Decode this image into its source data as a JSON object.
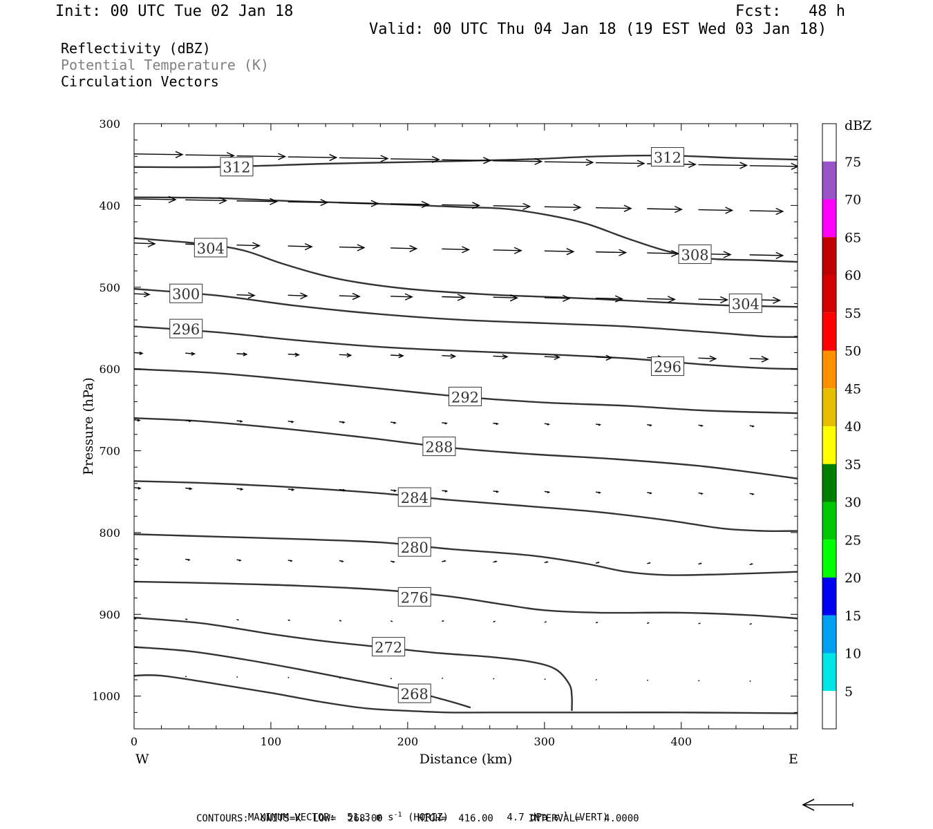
{
  "header": {
    "init": "Init: 00 UTC Tue 02 Jan 18",
    "fcst": "Fcst:   48 h",
    "valid": "Valid: 00 UTC Thu 04 Jan 18 (19 EST Wed 03 Jan 18)"
  },
  "legend": {
    "line1": "Reflectivity (dBZ)",
    "line2": "Potential Temperature (K)",
    "line3": "Circulation Vectors",
    "line2_color": "#808080"
  },
  "footer": {
    "max_vector_prefix": "MAXIMUM VECTOR:  51.3 m s",
    "max_vector_horiz": "(HORIZ)",
    "max_vector_vert_value": "4.7 dPa s",
    "max_vector_vert": "(VERT)",
    "exponent": "-1",
    "contours": "CONTOURS:  UNITS=K  LOW=  268.00      HIGH=  416.00      INTERVAL=    4.0000"
  },
  "chart_data": {
    "type": "line",
    "xlabel": "Distance (km)",
    "ylabel": "Pressure (hPa)",
    "x_ticks": [
      0,
      100,
      200,
      300,
      400
    ],
    "y_ticks": [
      300,
      400,
      500,
      600,
      700,
      800,
      900,
      1000
    ],
    "xlim": [
      0,
      485
    ],
    "ylim": [
      300,
      1040
    ],
    "x_end_labels": {
      "left": "W",
      "right": "E"
    },
    "colorbar": {
      "unit": "dBZ",
      "labels": [
        "5",
        "10",
        "15",
        "20",
        "25",
        "30",
        "35",
        "40",
        "45",
        "50",
        "55",
        "60",
        "65",
        "70",
        "75"
      ],
      "colors": [
        "#ffffff",
        "#00e5e5",
        "#00a0f0",
        "#0000f0",
        "#00ff00",
        "#00c800",
        "#008000",
        "#ffff00",
        "#e6be00",
        "#ff9000",
        "#ff0000",
        "#d40000",
        "#be0000",
        "#ff00ff",
        "#9955c8",
        "#ffffff"
      ]
    },
    "series": [
      {
        "label": "312",
        "label_at": [
          75,
          353
        ],
        "points": [
          [
            0,
            353
          ],
          [
            60,
            353
          ],
          [
            140,
            349
          ],
          [
            200,
            347
          ],
          [
            280,
            344
          ],
          [
            340,
            340
          ],
          [
            390,
            339
          ],
          [
            440,
            342
          ],
          [
            485,
            344
          ]
        ],
        "label2": "312",
        "label2_at": [
          390,
          341
        ]
      },
      {
        "label": "308",
        "label_at": [
          410,
          460
        ],
        "points": [
          [
            0,
            390
          ],
          [
            60,
            391
          ],
          [
            120,
            395
          ],
          [
            180,
            398
          ],
          [
            240,
            402
          ],
          [
            270,
            404
          ],
          [
            300,
            411
          ],
          [
            330,
            422
          ],
          [
            360,
            440
          ],
          [
            390,
            456
          ],
          [
            420,
            465
          ],
          [
            455,
            467
          ],
          [
            485,
            469
          ]
        ]
      },
      {
        "label": "304",
        "label_at": [
          56,
          452
        ],
        "points": [
          [
            0,
            440
          ],
          [
            50,
            447
          ],
          [
            80,
            455
          ],
          [
            110,
            472
          ],
          [
            150,
            490
          ],
          [
            200,
            502
          ],
          [
            260,
            509
          ],
          [
            320,
            513
          ],
          [
            380,
            518
          ],
          [
            430,
            522
          ],
          [
            485,
            524
          ]
        ],
        "label2": "304",
        "label2_at": [
          447,
          520
        ]
      },
      {
        "label": "300",
        "label_at": [
          38,
          508
        ],
        "points": [
          [
            0,
            502
          ],
          [
            60,
            510
          ],
          [
            120,
            523
          ],
          [
            180,
            533
          ],
          [
            240,
            540
          ],
          [
            300,
            544
          ],
          [
            360,
            548
          ],
          [
            420,
            555
          ],
          [
            460,
            560
          ],
          [
            485,
            561
          ]
        ]
      },
      {
        "label": "296",
        "label_at": [
          38,
          551
        ],
        "points": [
          [
            0,
            548
          ],
          [
            60,
            555
          ],
          [
            120,
            565
          ],
          [
            180,
            573
          ],
          [
            240,
            578
          ],
          [
            300,
            582
          ],
          [
            360,
            587
          ],
          [
            420,
            595
          ],
          [
            460,
            599
          ],
          [
            485,
            600
          ]
        ],
        "label2": "296",
        "label2_at": [
          390,
          597
        ]
      },
      {
        "label": "292",
        "label_at": [
          242,
          634
        ],
        "points": [
          [
            0,
            600
          ],
          [
            60,
            605
          ],
          [
            120,
            614
          ],
          [
            180,
            624
          ],
          [
            240,
            634
          ],
          [
            300,
            641
          ],
          [
            360,
            645
          ],
          [
            420,
            651
          ],
          [
            485,
            654
          ]
        ]
      },
      {
        "label": "288",
        "label_at": [
          223,
          695
        ],
        "points": [
          [
            0,
            660
          ],
          [
            50,
            664
          ],
          [
            110,
            673
          ],
          [
            170,
            684
          ],
          [
            230,
            696
          ],
          [
            290,
            704
          ],
          [
            350,
            710
          ],
          [
            410,
            718
          ],
          [
            450,
            726
          ],
          [
            485,
            734
          ]
        ]
      },
      {
        "label": "284",
        "label_at": [
          205,
          757
        ],
        "points": [
          [
            0,
            737
          ],
          [
            60,
            740
          ],
          [
            120,
            745
          ],
          [
            180,
            752
          ],
          [
            230,
            760
          ],
          [
            290,
            768
          ],
          [
            340,
            775
          ],
          [
            390,
            785
          ],
          [
            430,
            795
          ],
          [
            460,
            798
          ],
          [
            485,
            798
          ]
        ]
      },
      {
        "label": "280",
        "label_at": [
          205,
          818
        ],
        "points": [
          [
            0,
            802
          ],
          [
            60,
            805
          ],
          [
            120,
            808
          ],
          [
            180,
            812
          ],
          [
            230,
            820
          ],
          [
            290,
            828
          ],
          [
            330,
            838
          ],
          [
            360,
            848
          ],
          [
            390,
            852
          ],
          [
            430,
            851
          ],
          [
            485,
            848
          ]
        ]
      },
      {
        "label": "276",
        "label_at": [
          205,
          879
        ],
        "points": [
          [
            0,
            860
          ],
          [
            60,
            862
          ],
          [
            120,
            865
          ],
          [
            180,
            870
          ],
          [
            230,
            878
          ],
          [
            270,
            888
          ],
          [
            300,
            895
          ],
          [
            340,
            898
          ],
          [
            400,
            898
          ],
          [
            450,
            901
          ],
          [
            485,
            905
          ]
        ]
      },
      {
        "label": "272",
        "label_at": [
          186,
          940
        ],
        "points": [
          [
            0,
            904
          ],
          [
            50,
            911
          ],
          [
            100,
            924
          ],
          [
            140,
            933
          ],
          [
            180,
            940
          ],
          [
            220,
            947
          ],
          [
            260,
            952
          ],
          [
            290,
            958
          ],
          [
            308,
            967
          ],
          [
            318,
            985
          ],
          [
            320,
            1000
          ],
          [
            320,
            1018
          ]
        ]
      },
      {
        "label": "268",
        "label_at": [
          205,
          997
        ],
        "points": [
          [
            0,
            940
          ],
          [
            40,
            945
          ],
          [
            80,
            955
          ],
          [
            120,
            967
          ],
          [
            160,
            980
          ],
          [
            200,
            993
          ],
          [
            230,
            1006
          ],
          [
            246,
            1014
          ]
        ]
      },
      {
        "label": "",
        "label_at": [
          0,
          0
        ],
        "points": [
          [
            0,
            975
          ],
          [
            20,
            975
          ],
          [
            60,
            985
          ],
          [
            100,
            996
          ],
          [
            140,
            1008
          ],
          [
            170,
            1015
          ],
          [
            200,
            1018
          ],
          [
            230,
            1020
          ],
          [
            260,
            1020
          ],
          [
            320,
            1020
          ],
          [
            400,
            1020
          ],
          [
            485,
            1021
          ]
        ]
      }
    ],
    "vectors_spec": {
      "rows": [
        {
          "p": 337,
          "x0": 0,
          "len": 70,
          "dp": 0
        },
        {
          "p": 392,
          "x0": 0,
          "len": 60,
          "dp": 0
        },
        {
          "p": 446,
          "x0": 0,
          "len": 20,
          "dp": 0
        },
        {
          "p": 508,
          "x0": 0,
          "len": 14,
          "dp": 0
        },
        {
          "p": 580,
          "x0": 0,
          "len": 10,
          "dp": 0
        },
        {
          "p": 662,
          "x0": 0,
          "len": 5,
          "dp": 0
        },
        {
          "p": 745,
          "x0": 0,
          "len": 7,
          "dp": 0
        },
        {
          "p": 832,
          "x0": 0,
          "len": 4,
          "dp": 0
        },
        {
          "p": 905,
          "x0": 0,
          "len": 2,
          "dp": 0
        },
        {
          "p": 975,
          "x0": 0,
          "len": 1,
          "dp": 0
        }
      ]
    }
  }
}
